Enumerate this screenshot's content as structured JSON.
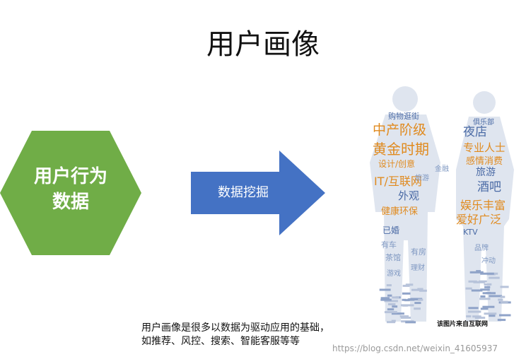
{
  "title": "用户画像",
  "hexagon": {
    "line1": "用户行为",
    "line2": "数据",
    "color": "#70ad47"
  },
  "arrow": {
    "label": "数据挖掘",
    "color": "#4472c4"
  },
  "word_cloud": {
    "man_words": [
      "中产阶级",
      "黄金时期",
      "设计/创意",
      "IT/互联网",
      "外观",
      "健康环保",
      "已婚",
      "有车",
      "茶馆",
      "游戏",
      "有房",
      "理财",
      "购物逛街",
      "金融",
      "旅游"
    ],
    "woman_words": [
      "夜店",
      "专业人士",
      "感情消费",
      "旅游",
      "酒吧",
      "娱乐丰富",
      "爱好广泛",
      "KTV",
      "俱乐部",
      "品牌",
      "冲动"
    ],
    "caption": "该图片来自互联网",
    "colors": {
      "orange": "#e08a1e",
      "blue": "#4a6aa5",
      "light": "#7f98c2"
    }
  },
  "note": {
    "line1": "用户画像是很多以数据为驱动应用的基础，",
    "line2": "如推荐、风控、搜索、智能客服等等"
  },
  "watermark": "https://blog.csdn.net/weixin_41605937"
}
